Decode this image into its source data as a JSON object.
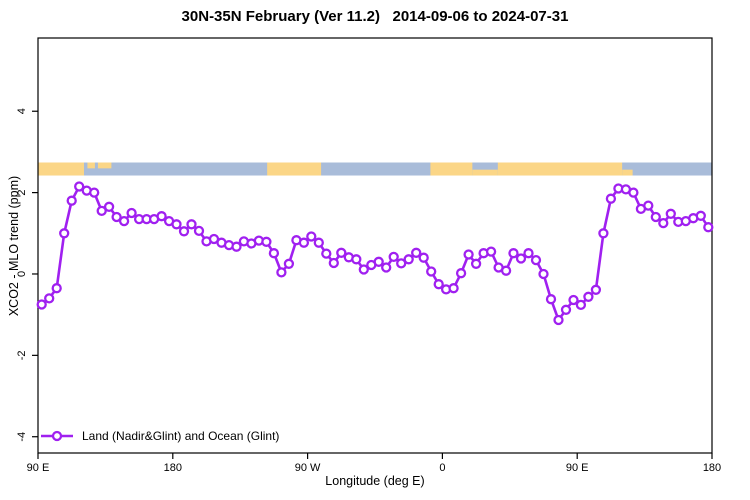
{
  "chart_data": {
    "type": "line",
    "title": "30N-35N February (Ver 11.2)   2014-09-06 to 2024-07-31",
    "xlabel": "Longitude (deg E)",
    "ylabel": "XCO2 - MLO trend (ppm)",
    "xlim": [
      90,
      540
    ],
    "ylim": [
      -4.4,
      5.8
    ],
    "grid": false,
    "legend_position": "bottom-left-inside",
    "xticks": [
      {
        "deg": 90,
        "label": "90 E"
      },
      {
        "deg": 180,
        "label": "180"
      },
      {
        "deg": 270,
        "label": "90 W"
      },
      {
        "deg": 360,
        "label": "0"
      },
      {
        "deg": 450,
        "label": "90 E"
      },
      {
        "deg": 540,
        "label": "180"
      }
    ],
    "yticks": [
      {
        "v": -4,
        "label": "-4"
      },
      {
        "v": -2,
        "label": "-2"
      },
      {
        "v": 0,
        "label": "0"
      },
      {
        "v": 2,
        "label": "2"
      },
      {
        "v": 4,
        "label": "4"
      }
    ],
    "x_start_deg": 92.5,
    "x_step_deg": 5,
    "series": [
      {
        "name": "Land (Nadir&Glint) and Ocean (Glint)",
        "color": "#A020F0",
        "marker": "open-circle",
        "values": [
          -0.75,
          -0.6,
          -0.35,
          1.0,
          1.8,
          2.15,
          2.05,
          2.0,
          1.55,
          1.65,
          1.4,
          1.3,
          1.5,
          1.35,
          1.35,
          1.35,
          1.42,
          1.3,
          1.22,
          1.05,
          1.22,
          1.06,
          0.8,
          0.86,
          0.77,
          0.71,
          0.67,
          0.8,
          0.75,
          0.82,
          0.79,
          0.51,
          0.04,
          0.25,
          0.83,
          0.77,
          0.92,
          0.77,
          0.5,
          0.27,
          0.52,
          0.41,
          0.36,
          0.11,
          0.22,
          0.3,
          0.16,
          0.42,
          0.26,
          0.36,
          0.52,
          0.4,
          0.06,
          -0.25,
          -0.38,
          -0.35,
          0.02,
          0.48,
          0.25,
          0.51,
          0.55,
          0.16,
          0.08,
          0.51,
          0.38,
          0.51,
          0.34,
          0.0,
          -0.62,
          -1.13,
          -0.88,
          -0.64,
          -0.76,
          -0.56,
          -0.39,
          1.0,
          1.85,
          2.1,
          2.08,
          2.0,
          1.6,
          1.68,
          1.4,
          1.25,
          1.48,
          1.28,
          1.3,
          1.37,
          1.43,
          1.15
        ]
      }
    ],
    "map_strip": {
      "description": "land-ocean strip along longitude",
      "value_top": 2.74,
      "value_bottom": 2.42,
      "ocean_color": "#A9BCD9",
      "land_color": "#FBD687",
      "land_segments_deg": [
        {
          "from": 90,
          "to": 120.7,
          "part": "full"
        },
        {
          "from": 123,
          "to": 128,
          "part": "top"
        },
        {
          "from": 130,
          "to": 139,
          "part": "top"
        },
        {
          "from": 243,
          "to": 279,
          "part": "full"
        },
        {
          "from": 352,
          "to": 380,
          "part": "full"
        },
        {
          "from": 380,
          "to": 397,
          "part": "bottom"
        },
        {
          "from": 397,
          "to": 480,
          "part": "full"
        },
        {
          "from": 480,
          "to": 487,
          "part": "bottom"
        }
      ]
    },
    "colors": {
      "axis": "#000000",
      "series": "#A020F0",
      "land": "#FBD687",
      "ocean": "#A9BCD9"
    }
  }
}
